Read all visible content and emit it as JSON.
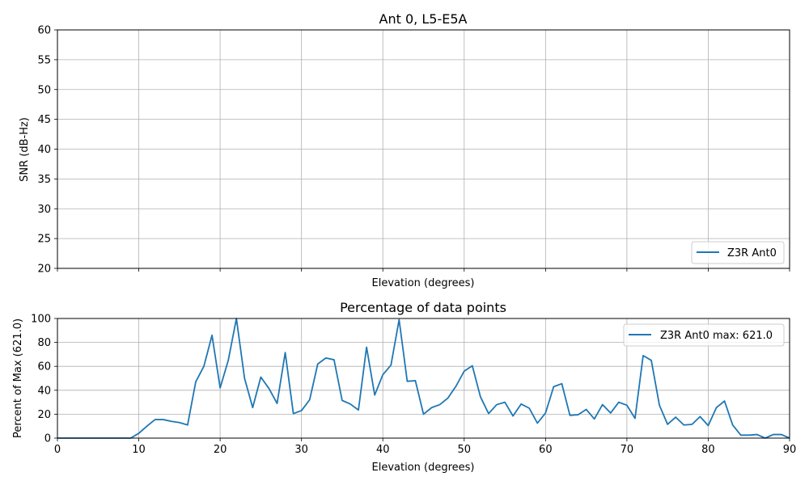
{
  "chart_data": [
    {
      "type": "line",
      "title": "Ant 0, L5-E5A",
      "xlabel": "Elevation (degrees)",
      "ylabel": "SNR (dB-Hz)",
      "xlim": [
        0,
        90
      ],
      "ylim": [
        20,
        60
      ],
      "yticks": [
        "20",
        "25",
        "30",
        "35",
        "40",
        "45",
        "50",
        "55",
        "60"
      ],
      "xticks": [
        0,
        10,
        20,
        30,
        40,
        50,
        60,
        70,
        80,
        90
      ],
      "grid": true,
      "legend": {
        "placement": "lower-right",
        "entries": [
          "Z3R Ant0"
        ]
      },
      "series": [
        {
          "name": "Z3R Ant0",
          "color": "#1f77b4",
          "x": [],
          "y": []
        }
      ]
    },
    {
      "type": "line",
      "title": "Percentage of data points",
      "xlabel": "Elevation (degrees)",
      "ylabel": "Percent of Max (621.0)",
      "xlim": [
        0,
        90
      ],
      "ylim": [
        0,
        100
      ],
      "xticks": [
        "0",
        "10",
        "20",
        "30",
        "40",
        "50",
        "60",
        "70",
        "80",
        "90"
      ],
      "yticks": [
        "0",
        "20",
        "40",
        "60",
        "80",
        "100"
      ],
      "grid": true,
      "legend": {
        "placement": "upper-right",
        "entries": [
          "Z3R Ant0 max: 621.0"
        ]
      },
      "series": [
        {
          "name": "Z3R Ant0 max: 621.0",
          "color": "#1f77b4",
          "x": [
            0,
            1,
            2,
            3,
            4,
            5,
            6,
            7,
            8,
            9,
            10,
            11,
            12,
            13,
            14,
            15,
            16,
            17,
            18,
            19,
            20,
            21,
            22,
            23,
            24,
            25,
            26,
            27,
            28,
            29,
            30,
            31,
            32,
            33,
            34,
            35,
            36,
            37,
            38,
            39,
            40,
            41,
            42,
            43,
            44,
            45,
            46,
            47,
            48,
            49,
            50,
            51,
            52,
            53,
            54,
            55,
            56,
            57,
            58,
            59,
            60,
            61,
            62,
            63,
            64,
            65,
            66,
            67,
            68,
            69,
            70,
            71,
            72,
            73,
            74,
            75,
            76,
            77,
            78,
            79,
            80,
            81,
            82,
            83,
            84,
            85,
            86,
            87,
            88,
            89,
            90
          ],
          "y": [
            0,
            0,
            0,
            0,
            0,
            0,
            0,
            0,
            0,
            0,
            4,
            10,
            15.5,
            15.5,
            14,
            13,
            11,
            47,
            60,
            86,
            42,
            65,
            100,
            50,
            25.5,
            51,
            41.5,
            29,
            71.5,
            20.5,
            23,
            32,
            62,
            67,
            65.5,
            31.5,
            28.5,
            23.5,
            76,
            36,
            53,
            61,
            99,
            47.5,
            48,
            20,
            25.5,
            28,
            33.5,
            43.5,
            56,
            60.5,
            34.5,
            20.5,
            28,
            30,
            18.5,
            28.5,
            25,
            12.5,
            21,
            43,
            45.5,
            19,
            19.5,
            24,
            16,
            28,
            21,
            30,
            27.5,
            16.5,
            69,
            65,
            27.5,
            11.5,
            17.5,
            11,
            11.5,
            18,
            10.5,
            25.5,
            31,
            11,
            2.5,
            2.5,
            3,
            0,
            3,
            3,
            0
          ]
        }
      ]
    }
  ]
}
